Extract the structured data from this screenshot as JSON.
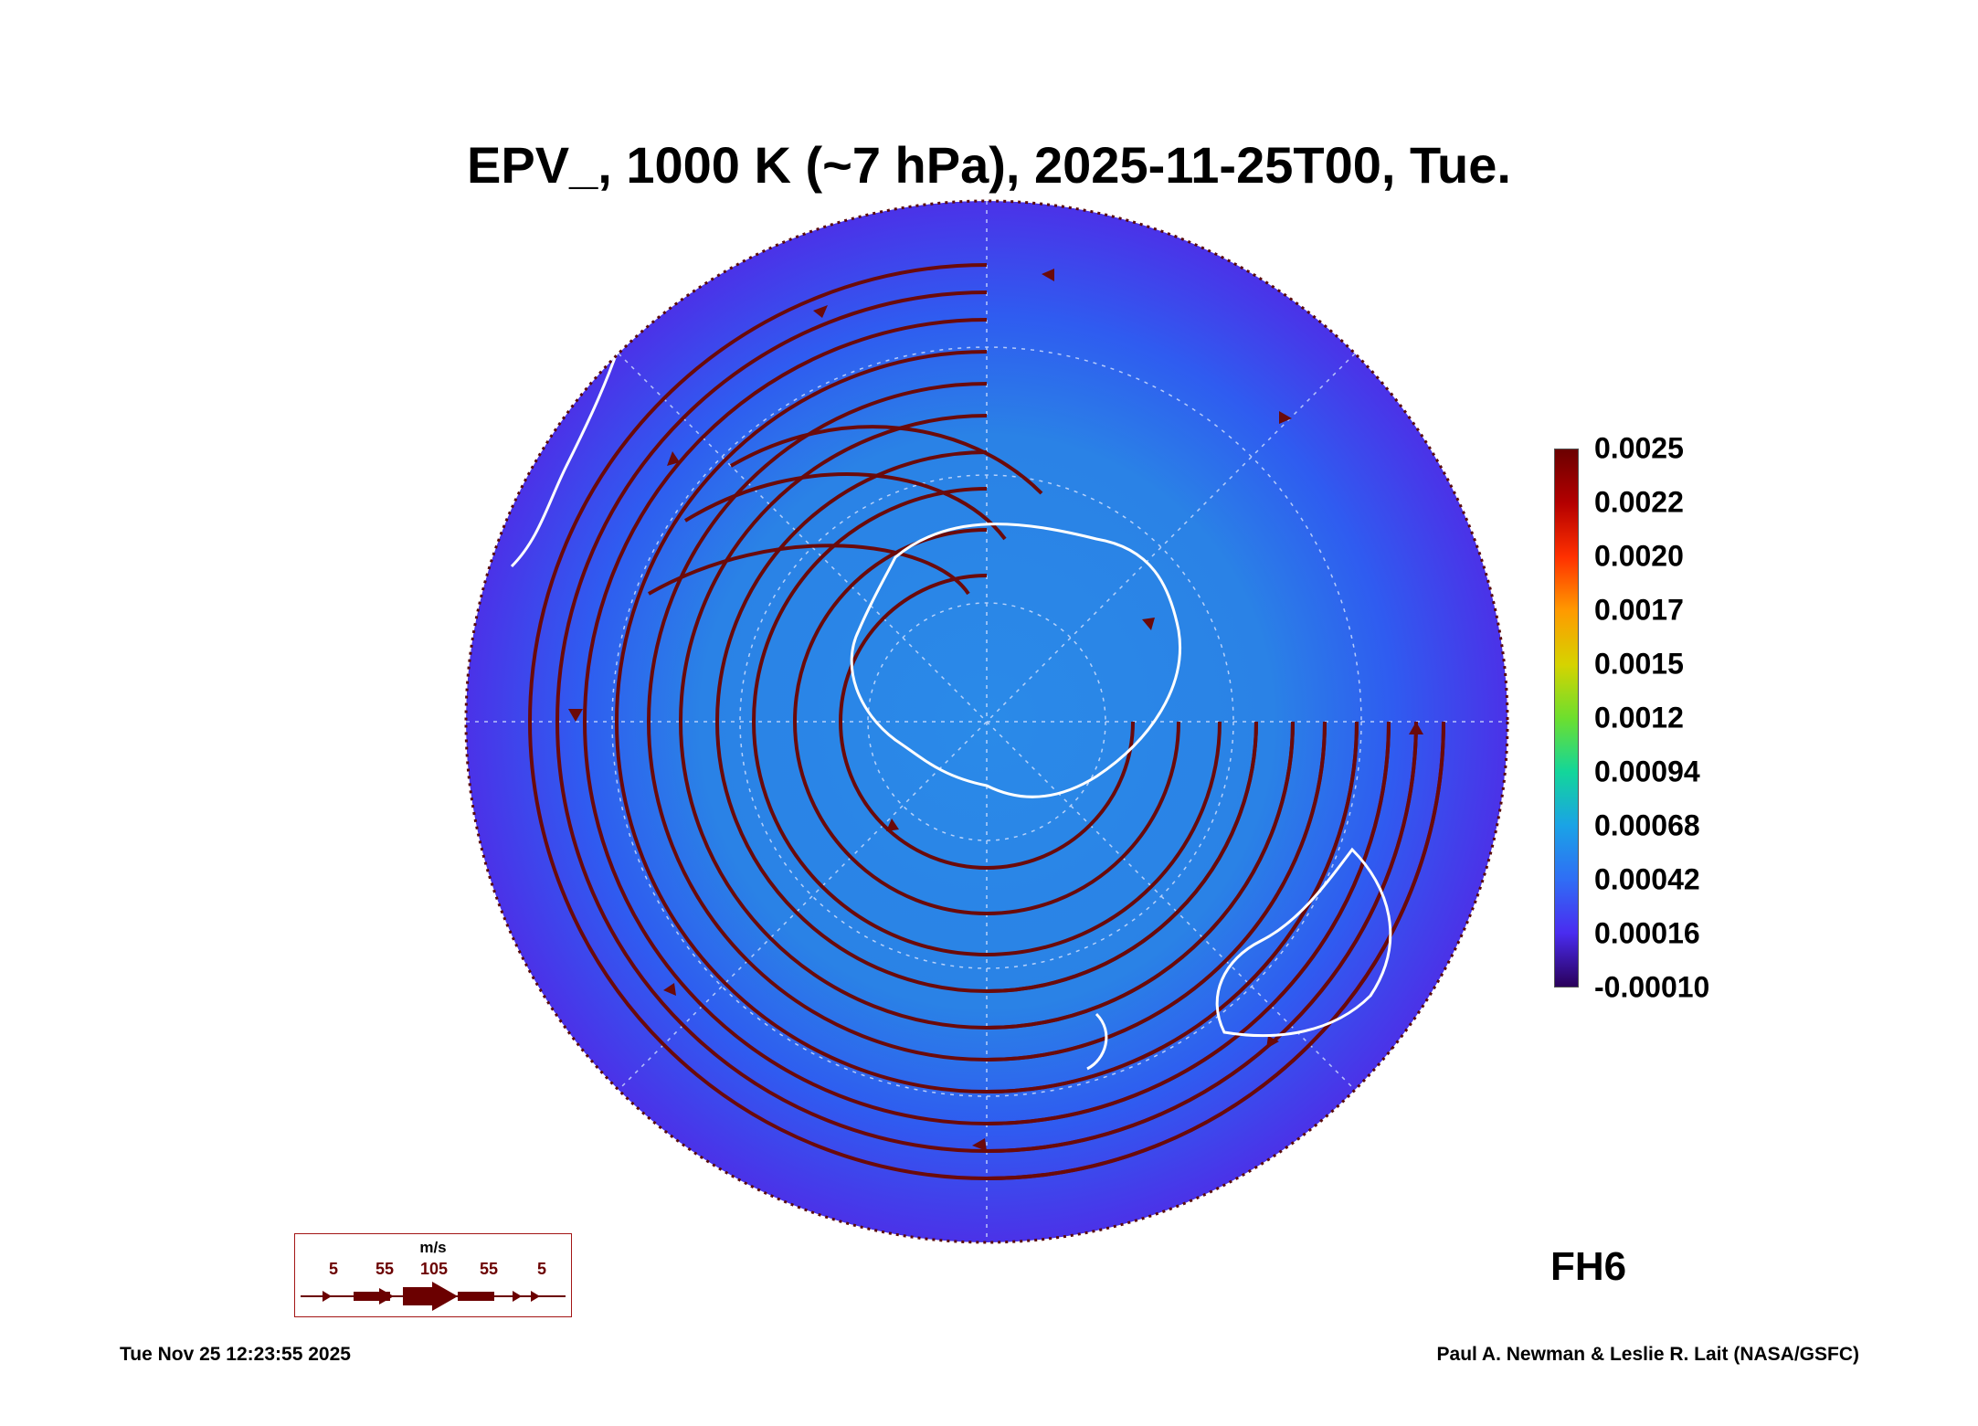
{
  "title": "EPV_, 1000 K (~7 hPa), 2025-11-25T00, Tue.",
  "colorbar": {
    "ticks": [
      "0.0025",
      "0.0022",
      "0.0020",
      "0.0017",
      "0.0015",
      "0.0012",
      "0.00094",
      "0.00068",
      "0.00042",
      "0.00016",
      "-0.00010"
    ],
    "colors": [
      "#6b0000",
      "#b40000",
      "#ff3000",
      "#ff9a00",
      "#d6d300",
      "#6ddf2e",
      "#13d69a",
      "#1aa3e6",
      "#2f6ef5",
      "#4a2cf0",
      "#2a005a"
    ]
  },
  "map": {
    "projection": "south-polar-stereographic",
    "field_colors": {
      "background": "#2f5cf0",
      "outer_ring": "#4b32e8",
      "inner": "#2a8ae8"
    },
    "coastline_color": "#ffffff",
    "streamline_color": "#6b0a0a",
    "gridline_color": "#d8e4ff"
  },
  "fh_label": "FH6",
  "wind_legend": {
    "unit": "m/s",
    "values": [
      "5",
      "55",
      "105",
      "55",
      "5"
    ]
  },
  "footer": {
    "timestamp": "Tue Nov 25 12:23:55 2025",
    "credit": "Paul A. Newman & Leslie R. Lait (NASA/GSFC)"
  }
}
